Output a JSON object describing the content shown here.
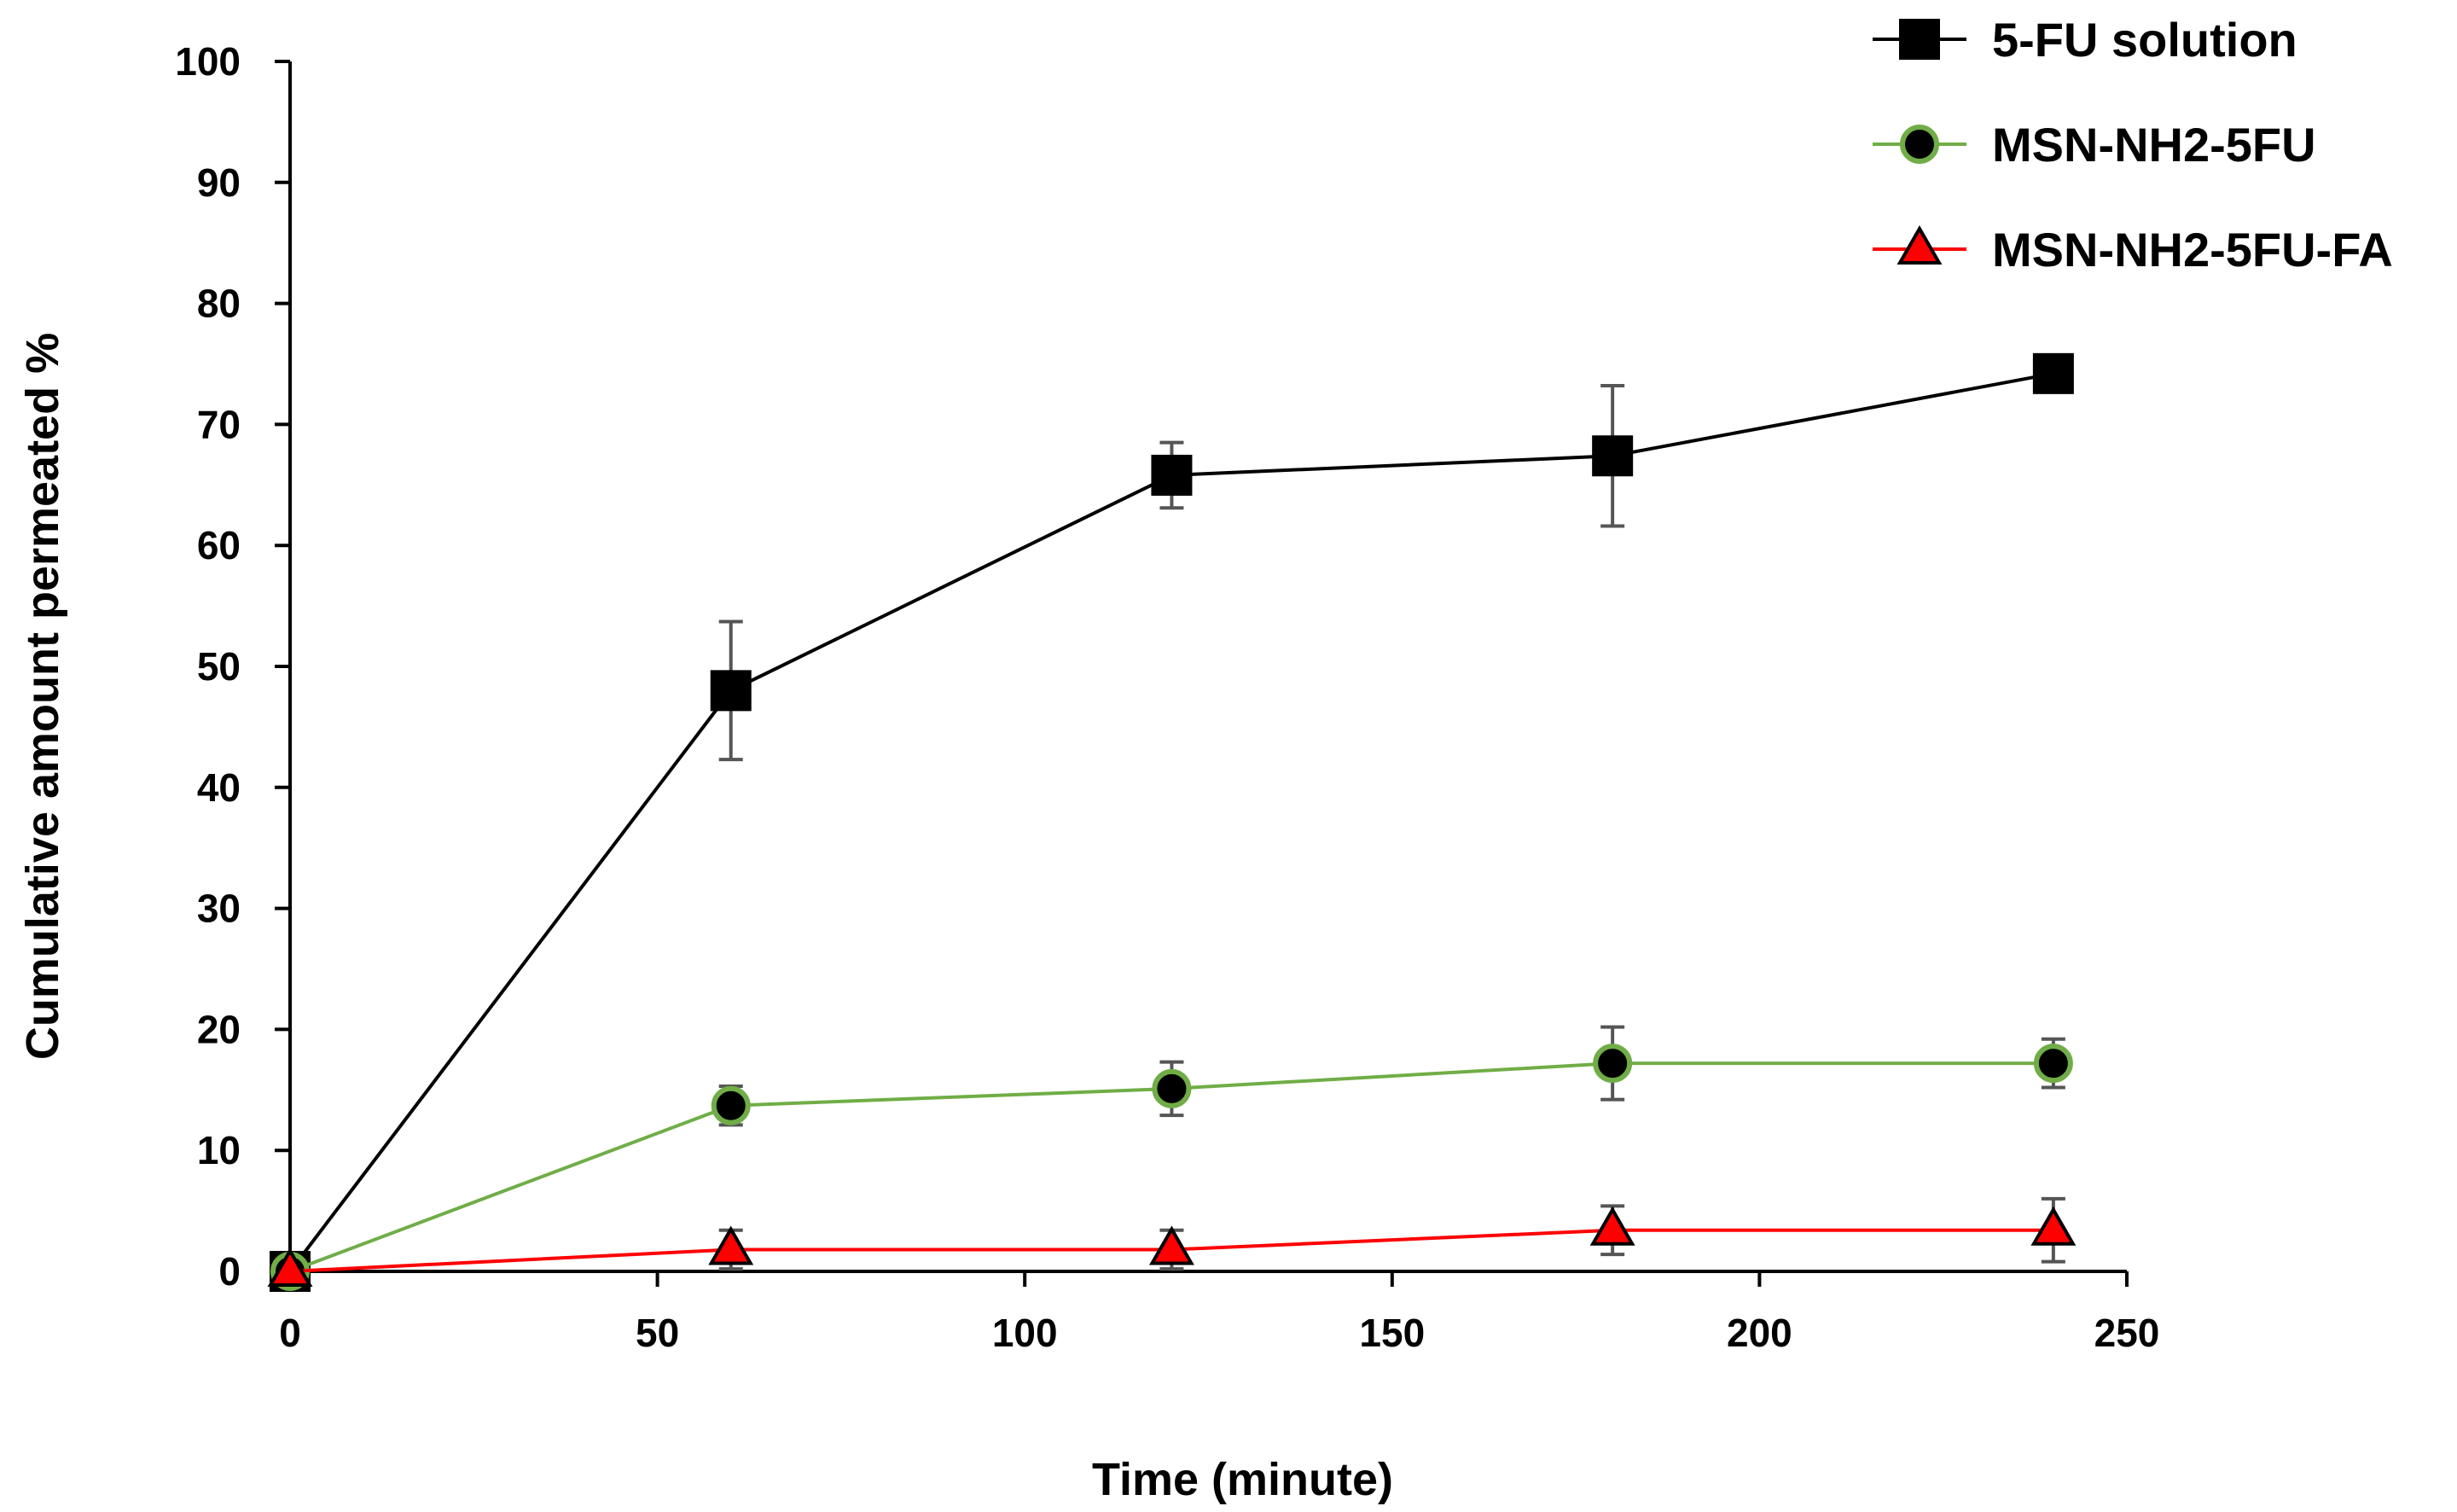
{
  "chart_data": {
    "type": "line",
    "title": "",
    "xlabel": "Time (minute)",
    "ylabel": "Cumulative amount permeated %",
    "xlim": [
      0,
      250
    ],
    "ylim": [
      0,
      100
    ],
    "x_ticks": [
      0,
      50,
      100,
      150,
      200,
      250
    ],
    "y_ticks": [
      0,
      10,
      20,
      30,
      40,
      50,
      60,
      70,
      80,
      90,
      100
    ],
    "grid": false,
    "legend_position": "top-right",
    "x": [
      0,
      60,
      120,
      180,
      240
    ],
    "series": [
      {
        "name": "5-FU solution",
        "marker": "square",
        "color": "#000000",
        "values": [
          0,
          48,
          65.8,
          67.4,
          74.2
        ],
        "errors": [
          0,
          5.7,
          2.7,
          5.8,
          0
        ]
      },
      {
        "name": "MSN-NH2-5FU",
        "marker": "circle",
        "color": "#70ad47",
        "values": [
          0,
          13.7,
          15.1,
          17.2,
          17.2
        ],
        "errors": [
          0,
          1.6,
          2.2,
          3.0,
          2.0
        ]
      },
      {
        "name": "MSN-NH2-5FU-FA",
        "marker": "triangle",
        "color": "#ff0000",
        "values": [
          0,
          1.8,
          1.8,
          3.4,
          3.4
        ],
        "errors": [
          0,
          1.6,
          1.6,
          2.0,
          2.6
        ]
      }
    ]
  }
}
